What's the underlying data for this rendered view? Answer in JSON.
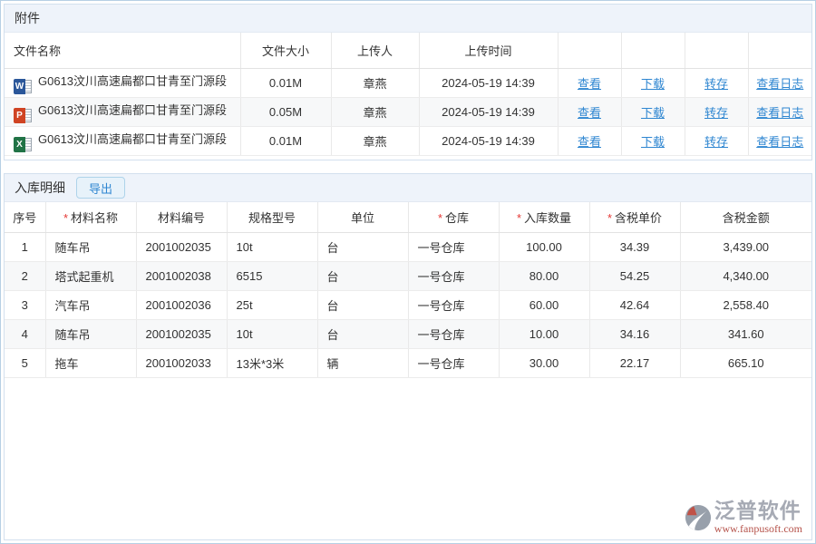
{
  "colors": {
    "link": "#2e86d1",
    "required": "#e53935",
    "word": "#2b579a",
    "ppt": "#d04423",
    "excel": "#217346",
    "brand-gray": "#a6aab4",
    "brand-red": "#b5524a"
  },
  "icons": {
    "word": {
      "letter": "W"
    },
    "ppt": {
      "letter": "P"
    },
    "excel": {
      "letter": "X"
    }
  },
  "attachments": {
    "title": "附件",
    "columns": [
      "文件名称",
      "文件大小",
      "上传人",
      "上传时间",
      "",
      "",
      "",
      ""
    ],
    "actions": [
      {
        "label": "查看",
        "name": "view-link"
      },
      {
        "label": "下载",
        "name": "download-link"
      },
      {
        "label": "转存",
        "name": "transfer-link"
      },
      {
        "label": "查看日志",
        "name": "view-log-link"
      }
    ],
    "rows": [
      {
        "icon": "word",
        "file_name": "G0613汶川高速扁都口甘青至门源段",
        "size": "0.01M",
        "uploader": "章燕",
        "time": "2024-05-19 14:39"
      },
      {
        "icon": "ppt",
        "file_name": "G0613汶川高速扁都口甘青至门源段",
        "size": "0.05M",
        "uploader": "章燕",
        "time": "2024-05-19 14:39"
      },
      {
        "icon": "excel",
        "file_name": "G0613汶川高速扁都口甘青至门源段",
        "size": "0.01M",
        "uploader": "章燕",
        "time": "2024-05-19 14:39"
      }
    ]
  },
  "inbound": {
    "title": "入库明细",
    "export_label": "导出",
    "columns": [
      {
        "label": "序号",
        "required": false
      },
      {
        "label": "材料名称",
        "required": true
      },
      {
        "label": "材料编号",
        "required": false
      },
      {
        "label": "规格型号",
        "required": false
      },
      {
        "label": "单位",
        "required": false
      },
      {
        "label": "仓库",
        "required": true
      },
      {
        "label": "入库数量",
        "required": true
      },
      {
        "label": "含税单价",
        "required": true
      },
      {
        "label": "含税金额",
        "required": false
      }
    ],
    "rows": [
      {
        "no": "1",
        "material_name": "随车吊",
        "material_code": "2001002035",
        "spec": "10t",
        "unit": "台",
        "warehouse": "一号仓库",
        "quantity": "100.00",
        "unit_price": "34.39",
        "amount": "3,439.00"
      },
      {
        "no": "2",
        "material_name": "塔式起重机",
        "material_code": "2001002038",
        "spec": "6515",
        "unit": "台",
        "warehouse": "一号仓库",
        "quantity": "80.00",
        "unit_price": "54.25",
        "amount": "4,340.00"
      },
      {
        "no": "3",
        "material_name": "汽车吊",
        "material_code": "2001002036",
        "spec": "25t",
        "unit": "台",
        "warehouse": "一号仓库",
        "quantity": "60.00",
        "unit_price": "42.64",
        "amount": "2,558.40"
      },
      {
        "no": "4",
        "material_name": "随车吊",
        "material_code": "2001002035",
        "spec": "10t",
        "unit": "台",
        "warehouse": "一号仓库",
        "quantity": "10.00",
        "unit_price": "34.16",
        "amount": "341.60"
      },
      {
        "no": "5",
        "material_name": "拖车",
        "material_code": "2001002033",
        "spec": "13米*3米",
        "unit": "辆",
        "warehouse": "一号仓库",
        "quantity": "30.00",
        "unit_price": "22.17",
        "amount": "665.10"
      }
    ]
  },
  "watermark": {
    "brand": "泛普软件",
    "url": "www.fanpusoft.com"
  }
}
